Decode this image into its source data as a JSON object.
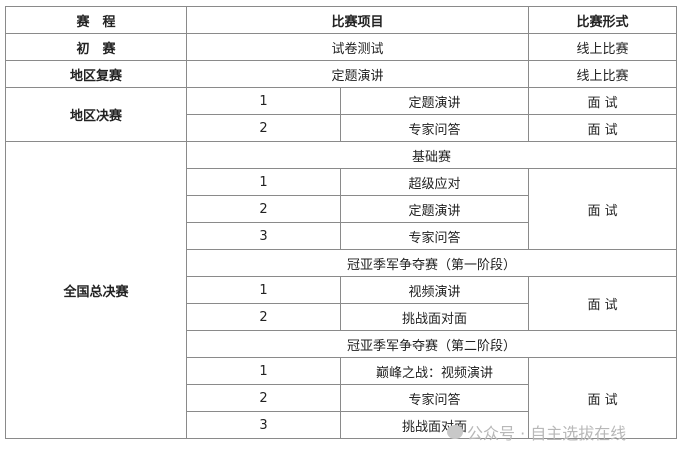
{
  "header": {
    "stage": "赛　程",
    "items": "比赛项目",
    "format": "比赛形式"
  },
  "preliminary": {
    "stage": "初　赛",
    "item": "试卷测试",
    "format": "线上比赛"
  },
  "regional_semi": {
    "stage": "地区复赛",
    "item": "定题演讲",
    "format": "线上比赛"
  },
  "regional_final": {
    "stage": "地区决赛",
    "rows": [
      {
        "no": "1",
        "item": "定题演讲",
        "format": "面 试"
      },
      {
        "no": "2",
        "item": "专家问答",
        "format": "面 试"
      }
    ]
  },
  "national_final": {
    "stage": "全国总决赛",
    "sections": [
      {
        "title": "基础赛",
        "format": "面 试",
        "rows": [
          {
            "no": "1",
            "item": "超级应对"
          },
          {
            "no": "2",
            "item": "定题演讲"
          },
          {
            "no": "3",
            "item": "专家问答"
          }
        ]
      },
      {
        "title": "冠亚季军争夺赛（第一阶段）",
        "format": "面 试",
        "rows": [
          {
            "no": "1",
            "item": "视频演讲"
          },
          {
            "no": "2",
            "item": "挑战面对面"
          }
        ]
      },
      {
        "title": "冠亚季军争夺赛（第二阶段）",
        "format": "面 试",
        "rows": [
          {
            "no": "1",
            "item": "巅峰之战：视频演讲"
          },
          {
            "no": "2",
            "item": "专家问答"
          },
          {
            "no": "3",
            "item": "挑战面对面"
          }
        ]
      }
    ]
  },
  "watermark": "公众号 · 自主选拔在线"
}
